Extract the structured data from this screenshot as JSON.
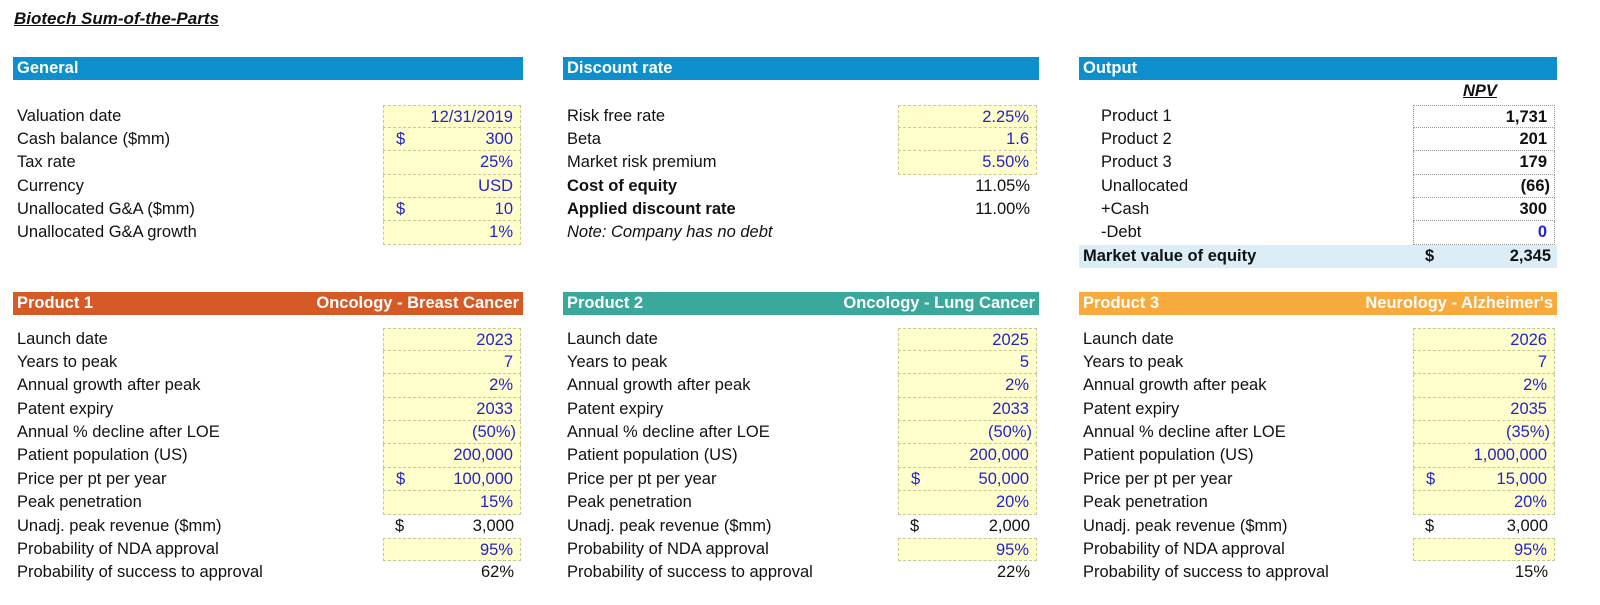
{
  "title": "Biotech Sum-of-the-Parts",
  "colors": {
    "section_header": "#0d8fcb",
    "product1": "#d65a26",
    "product2": "#3aa89b",
    "product3": "#f9aa3c",
    "input_fill": "#ffffcc",
    "input_text": "#2323d0",
    "total_fill": "#dbeef8"
  },
  "general": {
    "header": "General",
    "rows": [
      {
        "label": "Valuation date",
        "value": "12/31/2019",
        "input": true
      },
      {
        "label": "Cash balance ($mm)",
        "prefix": "$",
        "value": "300",
        "input": true
      },
      {
        "label": "Tax rate",
        "value": "25%",
        "input": true
      },
      {
        "label": "Currency",
        "value": "USD",
        "input": true
      },
      {
        "label": "Unallocated G&A ($mm)",
        "prefix": "$",
        "value": "10",
        "input": true
      },
      {
        "label": "Unallocated G&A growth",
        "value": "1%",
        "input": true
      }
    ]
  },
  "discount": {
    "header": "Discount rate",
    "rows": [
      {
        "label": "Risk free rate",
        "value": "2.25%",
        "input": true
      },
      {
        "label": "Beta",
        "value": "1.6",
        "input": true
      },
      {
        "label": "Market risk premium",
        "value": "5.50%",
        "input": true
      },
      {
        "label": "Cost of equity",
        "value": "11.05%",
        "bold_label": true
      },
      {
        "label": "Applied discount rate",
        "value": "11.00%",
        "bold_label": true
      },
      {
        "label": "Note: Company has no debt",
        "italic": true
      }
    ]
  },
  "output": {
    "header": "Output",
    "column_header": "NPV",
    "rows": [
      {
        "label": "Product 1",
        "value": "1,731"
      },
      {
        "label": "Product 2",
        "value": "201"
      },
      {
        "label": "Product 3",
        "value": "179"
      },
      {
        "label": "Unallocated",
        "value": "(66)"
      },
      {
        "label": "+Cash",
        "value": "300"
      },
      {
        "label": "-Debt",
        "value": "0",
        "blue": true
      }
    ],
    "total": {
      "label": "Market value of equity",
      "prefix": "$",
      "value": "2,345"
    }
  },
  "products": [
    {
      "name": "Product 1",
      "area": "Oncology - Breast Cancer",
      "rows": [
        {
          "label": "Launch date",
          "value": "2023",
          "input": true
        },
        {
          "label": "Years to peak",
          "value": "7",
          "input": true
        },
        {
          "label": "Annual growth after peak",
          "value": "2%",
          "input": true
        },
        {
          "label": "Patent expiry",
          "value": "2033",
          "input": true
        },
        {
          "label": "Annual % decline after LOE",
          "value": "(50%)",
          "input": true
        },
        {
          "label": "Patient population (US)",
          "value": "200,000",
          "input": true
        },
        {
          "label": "Price per pt per year",
          "prefix": "$",
          "value": "100,000",
          "input": true
        },
        {
          "label": "Peak penetration",
          "value": "15%",
          "input": true
        },
        {
          "label": "Unadj. peak revenue ($mm)",
          "prefix": "$",
          "value": "3,000"
        },
        {
          "label": "Probability of NDA approval",
          "value": "95%",
          "input": true
        },
        {
          "label": "Probability of success to approval",
          "value": "62%"
        }
      ]
    },
    {
      "name": "Product 2",
      "area": "Oncology - Lung Cancer",
      "rows": [
        {
          "label": "Launch date",
          "value": "2025",
          "input": true
        },
        {
          "label": "Years to peak",
          "value": "5",
          "input": true
        },
        {
          "label": "Annual growth after peak",
          "value": "2%",
          "input": true
        },
        {
          "label": "Patent expiry",
          "value": "2033",
          "input": true
        },
        {
          "label": "Annual % decline after LOE",
          "value": "(50%)",
          "input": true
        },
        {
          "label": "Patient population (US)",
          "value": "200,000",
          "input": true
        },
        {
          "label": "Price per pt per year",
          "prefix": "$",
          "value": "50,000",
          "input": true
        },
        {
          "label": "Peak penetration",
          "value": "20%",
          "input": true
        },
        {
          "label": "Unadj. peak revenue ($mm)",
          "prefix": "$",
          "value": "2,000"
        },
        {
          "label": "Probability of NDA approval",
          "value": "95%",
          "input": true
        },
        {
          "label": "Probability of success to approval",
          "value": "22%"
        }
      ]
    },
    {
      "name": "Product 3",
      "area": "Neurology - Alzheimer's",
      "rows": [
        {
          "label": "Launch date",
          "value": "2026",
          "input": true
        },
        {
          "label": "Years to peak",
          "value": "7",
          "input": true
        },
        {
          "label": "Annual growth after peak",
          "value": "2%",
          "input": true
        },
        {
          "label": "Patent expiry",
          "value": "2035",
          "input": true
        },
        {
          "label": "Annual % decline after LOE",
          "value": "(35%)",
          "input": true
        },
        {
          "label": "Patient population (US)",
          "value": "1,000,000",
          "input": true
        },
        {
          "label": "Price per pt per year",
          "prefix": "$",
          "value": "15,000",
          "input": true
        },
        {
          "label": "Peak penetration",
          "value": "20%",
          "input": true
        },
        {
          "label": "Unadj. peak revenue ($mm)",
          "prefix": "$",
          "value": "3,000"
        },
        {
          "label": "Probability of NDA approval",
          "value": "95%",
          "input": true
        },
        {
          "label": "Probability of success to approval",
          "value": "15%"
        }
      ]
    }
  ]
}
